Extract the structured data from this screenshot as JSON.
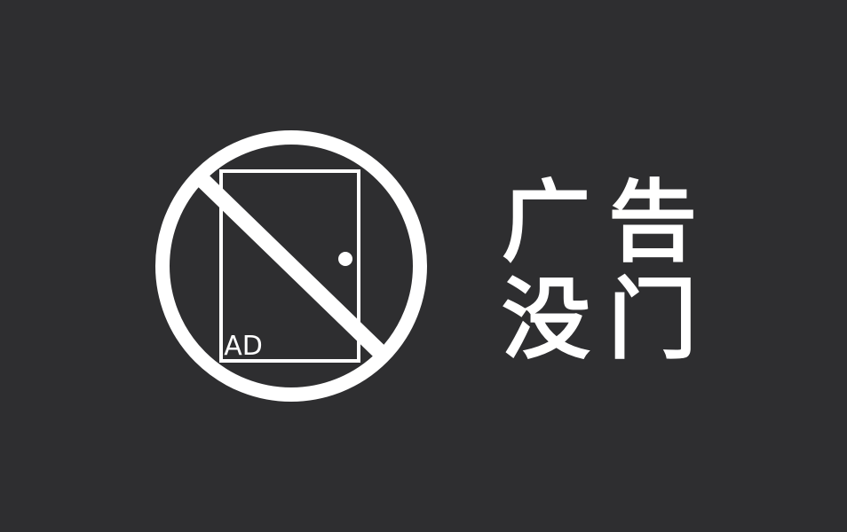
{
  "colors": {
    "background": "#2e2e30",
    "foreground": "#ffffff"
  },
  "logo": {
    "icon": "no-ads-door-icon",
    "badge_text": "AD"
  },
  "title": {
    "chars": [
      "广",
      "告",
      "没",
      "门"
    ]
  }
}
